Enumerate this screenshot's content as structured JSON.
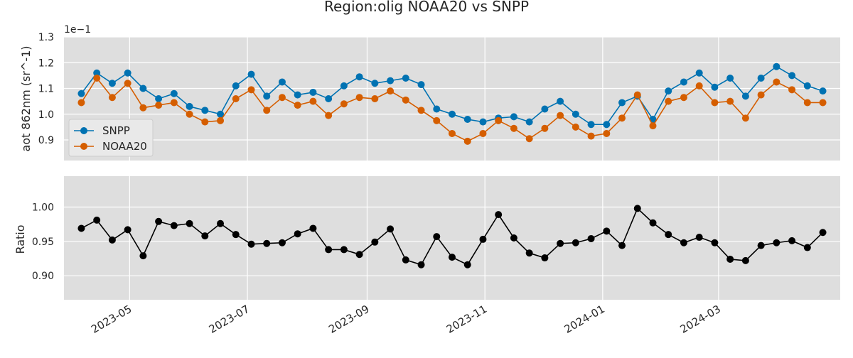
{
  "chart_data": {
    "type": "line",
    "title": "Region:olig NOAA20 vs SNPP",
    "x": [
      "2023-04-06",
      "2023-04-14",
      "2023-04-22",
      "2023-04-30",
      "2023-05-08",
      "2023-05-16",
      "2023-05-24",
      "2023-06-01",
      "2023-06-09",
      "2023-06-17",
      "2023-06-25",
      "2023-07-03",
      "2023-07-11",
      "2023-07-19",
      "2023-07-27",
      "2023-08-04",
      "2023-08-12",
      "2023-08-20",
      "2023-08-28",
      "2023-09-05",
      "2023-09-13",
      "2023-09-21",
      "2023-09-29",
      "2023-10-07",
      "2023-10-15",
      "2023-10-23",
      "2023-10-31",
      "2023-11-08",
      "2023-11-16",
      "2023-11-24",
      "2023-12-02",
      "2023-12-10",
      "2023-12-18",
      "2023-12-26",
      "2024-01-03",
      "2024-01-11",
      "2024-01-19",
      "2024-01-27",
      "2024-02-04",
      "2024-02-12",
      "2024-02-20",
      "2024-02-28",
      "2024-03-07",
      "2024-03-15",
      "2024-03-23",
      "2024-03-31",
      "2024-04-08",
      "2024-04-16",
      "2024-04-24"
    ],
    "xticks": [
      "2023-05",
      "2023-07",
      "2023-09",
      "2023-11",
      "2024-01",
      "2024-03"
    ],
    "panels": [
      {
        "ylabel": "aot 862nm (sr^-1)",
        "offset_text": "1e−1",
        "ylim": [
          0.82,
          1.3
        ],
        "yticks": [
          "0.9",
          "1.0",
          "1.1",
          "1.2",
          "1.3"
        ],
        "ytick_values": [
          0.9,
          1.0,
          1.1,
          1.2,
          1.3
        ],
        "legend": "lower-left",
        "series": [
          {
            "name": "SNPP",
            "color": "#0072b2",
            "values": [
              1.08,
              1.16,
              1.12,
              1.16,
              1.1,
              1.06,
              1.08,
              1.03,
              1.015,
              1.0,
              1.11,
              1.155,
              1.07,
              1.125,
              1.075,
              1.085,
              1.06,
              1.11,
              1.145,
              1.12,
              1.13,
              1.14,
              1.115,
              1.02,
              1.0,
              0.98,
              0.97,
              0.985,
              0.99,
              0.97,
              1.02,
              1.05,
              1.0,
              0.96,
              0.96,
              1.045,
              1.07,
              0.98,
              1.09,
              1.125,
              1.16,
              1.105,
              1.14,
              1.07,
              1.14,
              1.185,
              1.15,
              1.11,
              1.09
            ]
          },
          {
            "name": "NOAA20",
            "color": "#d55e00",
            "values": [
              1.045,
              1.14,
              1.065,
              1.12,
              1.025,
              1.035,
              1.045,
              1.0,
              0.97,
              0.975,
              1.06,
              1.095,
              1.015,
              1.065,
              1.035,
              1.05,
              0.995,
              1.04,
              1.065,
              1.06,
              1.09,
              1.055,
              1.015,
              0.975,
              0.925,
              0.895,
              0.925,
              0.975,
              0.945,
              0.905,
              0.945,
              0.995,
              0.95,
              0.915,
              0.925,
              0.985,
              1.075,
              0.955,
              1.05,
              1.065,
              1.11,
              1.045,
              1.05,
              0.985,
              1.075,
              1.125,
              1.095,
              1.045,
              1.045
            ]
          }
        ]
      },
      {
        "ylabel": "Ratio",
        "ylim": [
          0.865,
          1.045
        ],
        "yticks": [
          "0.90",
          "0.95",
          "1.00"
        ],
        "ytick_values": [
          0.9,
          0.95,
          1.0
        ],
        "series": [
          {
            "name": "",
            "color": "#000000",
            "values": [
              0.969,
              0.981,
              0.952,
              0.967,
              0.929,
              0.979,
              0.973,
              0.976,
              0.958,
              0.976,
              0.96,
              0.946,
              0.947,
              0.948,
              0.961,
              0.969,
              0.938,
              0.938,
              0.931,
              0.949,
              0.968,
              0.923,
              0.916,
              0.957,
              0.927,
              0.916,
              0.953,
              0.989,
              0.955,
              0.933,
              0.926,
              0.947,
              0.948,
              0.954,
              0.965,
              0.944,
              0.998,
              0.977,
              0.96,
              0.948,
              0.956,
              0.948,
              0.924,
              0.922,
              0.944,
              0.948,
              0.951,
              0.941,
              0.963
            ]
          }
        ]
      }
    ],
    "grid": true
  }
}
